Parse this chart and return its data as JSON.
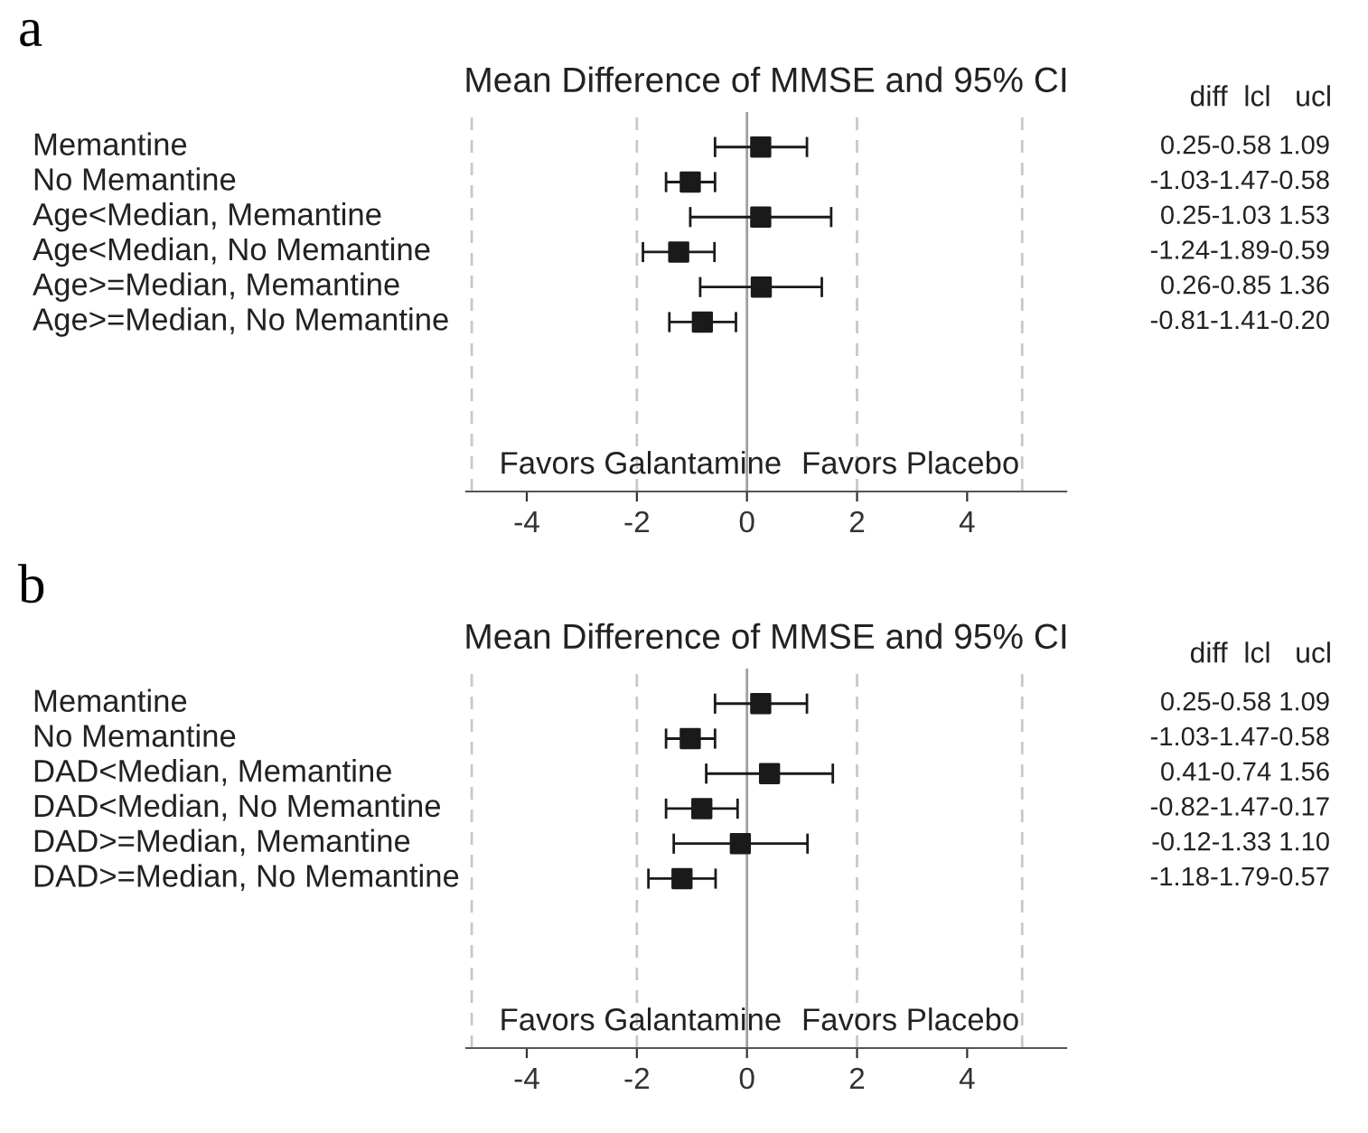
{
  "chart_data": [
    {
      "type": "scatter",
      "orientation": "horizontal",
      "title": "Mean Difference of MMSE and 95% CI",
      "categories": [
        "Memantine",
        "No Memantine",
        "Age<Median, Memantine",
        "Age<Median, No Memantine",
        "Age>=Median, Memantine",
        "Age>=Median, No Memantine"
      ],
      "values": [
        0.25,
        -1.03,
        0.25,
        -1.24,
        0.26,
        -0.81
      ],
      "errors": [
        [
          -0.58,
          1.09
        ],
        [
          -1.47,
          -0.58
        ],
        [
          -1.03,
          1.53
        ],
        [
          -1.89,
          -0.59
        ],
        [
          -0.85,
          1.36
        ],
        [
          -1.41,
          -0.2
        ]
      ],
      "color": "#1a1a1a",
      "marker": "square",
      "xlim": [
        -5.1,
        5.8
      ],
      "xticks": [
        -4,
        -2,
        0,
        2,
        4
      ],
      "ref_lines": [
        {
          "axis": "x",
          "value": -5,
          "color": "#c8c8c8",
          "line_style": "dashed"
        },
        {
          "axis": "x",
          "value": -2,
          "color": "#c8c8c8",
          "line_style": "dashed"
        },
        {
          "axis": "x",
          "value": 0,
          "color": "#a0a0a0",
          "line_style": "solid"
        },
        {
          "axis": "x",
          "value": 2,
          "color": "#c8c8c8",
          "line_style": "dashed"
        },
        {
          "axis": "x",
          "value": 5,
          "color": "#c8c8c8",
          "line_style": "dashed"
        }
      ],
      "annotations": [
        "a",
        "diff  lcl   ucl",
        "Favors Galantamine",
        "Favors Placebo",
        "0.25-0.58 1.09",
        "-1.03-1.47-0.58",
        "0.25-1.03 1.53",
        "-1.24-1.89-0.59",
        "0.26-0.85 1.36",
        "-0.81-1.41-0.20"
      ]
    },
    {
      "type": "scatter",
      "orientation": "horizontal",
      "title": "Mean Difference of MMSE and 95% CI",
      "categories": [
        "Memantine",
        "No Memantine",
        "DAD<Median, Memantine",
        "DAD<Median, No Memantine",
        "DAD>=Median, Memantine",
        "DAD>=Median, No Memantine"
      ],
      "values": [
        0.25,
        -1.03,
        0.41,
        -0.82,
        -0.12,
        -1.18
      ],
      "errors": [
        [
          -0.58,
          1.09
        ],
        [
          -1.47,
          -0.58
        ],
        [
          -0.74,
          1.56
        ],
        [
          -1.47,
          -0.17
        ],
        [
          -1.33,
          1.1
        ],
        [
          -1.79,
          -0.57
        ]
      ],
      "color": "#1a1a1a",
      "marker": "square",
      "xlim": [
        -5.1,
        5.8
      ],
      "xticks": [
        -4,
        -2,
        0,
        2,
        4
      ],
      "ref_lines": [
        {
          "axis": "x",
          "value": -5,
          "color": "#c8c8c8",
          "line_style": "dashed"
        },
        {
          "axis": "x",
          "value": -2,
          "color": "#c8c8c8",
          "line_style": "dashed"
        },
        {
          "axis": "x",
          "value": 0,
          "color": "#a0a0a0",
          "line_style": "solid"
        },
        {
          "axis": "x",
          "value": 2,
          "color": "#c8c8c8",
          "line_style": "dashed"
        },
        {
          "axis": "x",
          "value": 5,
          "color": "#c8c8c8",
          "line_style": "dashed"
        }
      ],
      "annotations": [
        "b",
        "diff  lcl   ucl",
        "Favors Galantamine",
        "Favors Placebo",
        "0.25-0.58 1.09",
        "-1.03-1.47-0.58",
        "0.41-0.74 1.56",
        "-0.82-1.47-0.17",
        "-0.12-1.33 1.10",
        "-1.18-1.79-0.57"
      ]
    }
  ]
}
